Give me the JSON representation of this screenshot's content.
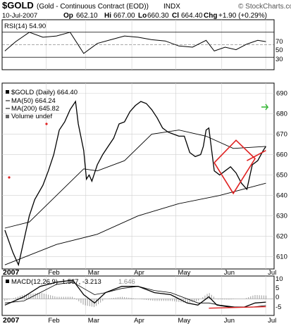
{
  "header": {
    "symbol": "$GOLD",
    "name": "(Gold - Continuous Contract (EOD))",
    "exchange": "INDX",
    "source": "© StockCharts.com",
    "date": "10-Jul-2007",
    "quote": {
      "op_label": "Op",
      "op": "662.10",
      "hi_label": "Hi",
      "hi": "667.00",
      "lo_label": "Lo",
      "lo": "660.30",
      "cl_label": "Cl",
      "cl": "664.40",
      "chg_label": "Chg",
      "chg": "+1.90 (+0.29%)"
    }
  },
  "colors": {
    "price": "#000000",
    "ma50": "#000000",
    "ma200": "#000000",
    "pattern": "#e02020",
    "histogram": "#888888",
    "red_dot": "#e02020",
    "arrow": "#2db52d"
  },
  "months": [
    "2007",
    "Feb",
    "Mar",
    "Apr",
    "May",
    "Jun",
    "Jul"
  ],
  "rsi": {
    "legend": "RSI(14) 54.90",
    "ticks": [
      "70",
      "50",
      "30"
    ],
    "levels": [
      30,
      70
    ],
    "ylim": [
      10,
      90
    ]
  },
  "price": {
    "legend_price": "$GOLD (Daily) 664.40",
    "legend_ma50": "MA(50) 664.24",
    "legend_ma200": "MA(200) 645.82",
    "legend_volume": "Volume undef",
    "ticks": [
      "690",
      "680",
      "670",
      "660",
      "650",
      "640",
      "630",
      "620",
      "610"
    ],
    "ylim": [
      604,
      695
    ]
  },
  "macd": {
    "legend": "MACD(12,26,9) -1.567, -3.213",
    "legend_hist": "1.646",
    "ticks": [
      "10",
      "5",
      "0",
      "-5"
    ],
    "ylim": [
      -8,
      11
    ]
  },
  "chart_data": {
    "type": "line",
    "title": "$GOLD (Gold - Continuous Contract (EOD)) INDX",
    "price_series": [
      [
        1,
        623
      ],
      [
        4,
        612
      ],
      [
        6,
        606
      ],
      [
        8,
        618
      ],
      [
        10,
        630
      ],
      [
        12,
        638
      ],
      [
        15,
        645
      ],
      [
        17,
        652
      ],
      [
        19,
        660
      ],
      [
        21,
        672
      ],
      [
        23,
        676
      ],
      [
        25,
        682
      ],
      [
        27,
        686
      ],
      [
        28,
        675
      ],
      [
        30,
        662
      ],
      [
        31,
        648
      ],
      [
        32,
        650
      ],
      [
        33,
        647
      ],
      [
        35,
        655
      ],
      [
        37,
        660
      ],
      [
        39,
        664
      ],
      [
        41,
        668
      ],
      [
        43,
        675
      ],
      [
        45,
        676
      ],
      [
        47,
        681
      ],
      [
        49,
        684
      ],
      [
        51,
        686
      ],
      [
        53,
        685
      ],
      [
        55,
        682
      ],
      [
        57,
        678
      ],
      [
        59,
        673
      ],
      [
        61,
        671
      ],
      [
        63,
        670
      ],
      [
        65,
        669
      ],
      [
        67,
        669
      ],
      [
        69,
        661
      ],
      [
        71,
        659
      ],
      [
        73,
        660
      ],
      [
        74,
        664
      ],
      [
        75,
        672
      ],
      [
        76,
        673
      ],
      [
        78,
        652
      ],
      [
        80,
        650
      ],
      [
        82,
        652
      ],
      [
        84,
        654
      ],
      [
        86,
        651
      ],
      [
        88,
        646
      ],
      [
        90,
        643
      ],
      [
        92,
        655
      ],
      [
        94,
        657
      ],
      [
        96,
        662
      ],
      [
        97,
        664
      ]
    ],
    "ma50_series": [
      [
        1,
        624
      ],
      [
        10,
        627
      ],
      [
        20,
        640
      ],
      [
        30,
        653
      ],
      [
        35,
        652
      ],
      [
        45,
        657
      ],
      [
        55,
        670
      ],
      [
        65,
        672
      ],
      [
        75,
        669
      ],
      [
        85,
        663
      ],
      [
        97,
        664
      ]
    ],
    "ma200_series": [
      [
        1,
        606
      ],
      [
        20,
        616
      ],
      [
        35,
        621
      ],
      [
        50,
        630
      ],
      [
        65,
        636
      ],
      [
        80,
        640
      ],
      [
        97,
        646
      ]
    ],
    "rsi_series": [
      [
        1,
        40
      ],
      [
        5,
        55
      ],
      [
        10,
        70
      ],
      [
        15,
        62
      ],
      [
        20,
        64
      ],
      [
        25,
        70
      ],
      [
        30,
        36
      ],
      [
        35,
        52
      ],
      [
        40,
        58
      ],
      [
        45,
        64
      ],
      [
        50,
        62
      ],
      [
        55,
        58
      ],
      [
        60,
        56
      ],
      [
        65,
        48
      ],
      [
        70,
        46
      ],
      [
        75,
        57
      ],
      [
        78,
        40
      ],
      [
        82,
        46
      ],
      [
        86,
        42
      ],
      [
        90,
        51
      ],
      [
        94,
        57
      ],
      [
        97,
        55
      ]
    ],
    "macd_series": [
      [
        1,
        -3
      ],
      [
        8,
        1
      ],
      [
        14,
        6
      ],
      [
        20,
        8
      ],
      [
        26,
        9
      ],
      [
        30,
        2
      ],
      [
        34,
        -2
      ],
      [
        38,
        3
      ],
      [
        44,
        6
      ],
      [
        50,
        6
      ],
      [
        56,
        3
      ],
      [
        62,
        2
      ],
      [
        68,
        -2
      ],
      [
        72,
        -3
      ],
      [
        76,
        1
      ],
      [
        79,
        -3
      ],
      [
        84,
        -4
      ],
      [
        89,
        -4
      ],
      [
        93,
        -2
      ],
      [
        97,
        -1.6
      ]
    ],
    "signal_series": [
      [
        1,
        -2
      ],
      [
        8,
        -1
      ],
      [
        14,
        3
      ],
      [
        20,
        7
      ],
      [
        26,
        8
      ],
      [
        30,
        5
      ],
      [
        34,
        2
      ],
      [
        38,
        3
      ],
      [
        44,
        5
      ],
      [
        50,
        6
      ],
      [
        56,
        4
      ],
      [
        62,
        3
      ],
      [
        68,
        0
      ],
      [
        72,
        -2
      ],
      [
        76,
        -2
      ],
      [
        80,
        -3
      ],
      [
        86,
        -4
      ],
      [
        92,
        -4
      ],
      [
        97,
        -3.2
      ]
    ],
    "pattern_points": [
      [
        78,
        656
      ],
      [
        86,
        667
      ],
      [
        93,
        658
      ],
      [
        85,
        641
      ],
      [
        78,
        656
      ]
    ],
    "pattern_line": [
      [
        90,
        657
      ],
      [
        97,
        662
      ]
    ],
    "macd_support_line": [
      [
        76,
        -4.5
      ],
      [
        97,
        -3.8
      ]
    ]
  }
}
